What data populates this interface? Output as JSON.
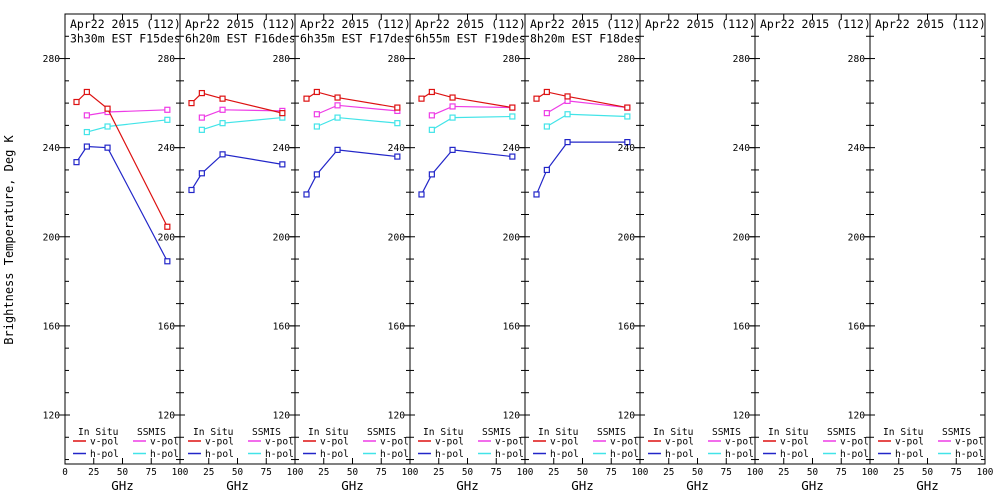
{
  "figure": {
    "background": "#ffffff",
    "axis_color": "#000000",
    "ylabel": "Brightness Temperature, Deg K",
    "xlabel": "GHz",
    "legend": {
      "col1_header": "In Situ",
      "col2_header": "SSMIS",
      "vpol_label": "v-pol",
      "hpol_label": "h-pol"
    }
  },
  "colors": {
    "insitu_v": "#dd1111",
    "insitu_h": "#2226c8",
    "ssmis_v": "#ee3ce6",
    "ssmis_h": "#42e4e8"
  },
  "chart_data": {
    "type": "line",
    "xlabel": "GHz",
    "ylabel": "Brightness Temperature, Deg K",
    "xlim": [
      0,
      100
    ],
    "ylim": [
      98,
      300
    ],
    "xticks": [
      0,
      25,
      50,
      75,
      100
    ],
    "yticks": [
      120,
      160,
      200,
      240,
      280
    ],
    "x_minor_step": 0,
    "y_minor_step": 10,
    "legend_entries": [
      {
        "group": "In Situ",
        "label": "v-pol",
        "series": "insitu_v"
      },
      {
        "group": "In Situ",
        "label": "h-pol",
        "series": "insitu_h"
      },
      {
        "group": "SSMIS",
        "label": "v-pol",
        "series": "ssmis_v"
      },
      {
        "group": "SSMIS",
        "label": "h-pol",
        "series": "ssmis_h"
      }
    ],
    "panels": [
      {
        "title1": "Apr22 2015 (112)",
        "title2": "3h30m EST F15desc",
        "series": [
          {
            "name": "ssmis_h",
            "x": [
              19,
              37,
              89
            ],
            "y": [
              247,
              249.5,
              252.5
            ]
          },
          {
            "name": "ssmis_v",
            "x": [
              19,
              37,
              89
            ],
            "y": [
              254.5,
              256,
              257
            ]
          },
          {
            "name": "insitu_h",
            "x": [
              10,
              19,
              37,
              89
            ],
            "y": [
              233.5,
              240.5,
              240,
              189
            ]
          },
          {
            "name": "insitu_v",
            "x": [
              10,
              19,
              37,
              89
            ],
            "y": [
              260.5,
              265,
              257.5,
              204.5
            ]
          }
        ]
      },
      {
        "title1": "Apr22 2015 (112)",
        "title2": "6h20m EST F16desc",
        "series": [
          {
            "name": "ssmis_h",
            "x": [
              19,
              37,
              89
            ],
            "y": [
              248,
              251,
              253.5
            ]
          },
          {
            "name": "ssmis_v",
            "x": [
              19,
              37,
              89
            ],
            "y": [
              253.5,
              257,
              256.5
            ]
          },
          {
            "name": "insitu_h",
            "x": [
              10,
              19,
              37,
              89
            ],
            "y": [
              221,
              228.5,
              237,
              232.5
            ]
          },
          {
            "name": "insitu_v",
            "x": [
              10,
              19,
              37,
              89
            ],
            "y": [
              260,
              264.5,
              262,
              255.5
            ]
          }
        ]
      },
      {
        "title1": "Apr22 2015 (112)",
        "title2": "6h35m EST F17desc",
        "series": [
          {
            "name": "ssmis_h",
            "x": [
              19,
              37,
              89
            ],
            "y": [
              249.5,
              253.5,
              251
            ]
          },
          {
            "name": "ssmis_v",
            "x": [
              19,
              37,
              89
            ],
            "y": [
              255,
              259,
              256.5
            ]
          },
          {
            "name": "insitu_h",
            "x": [
              10,
              19,
              37,
              89
            ],
            "y": [
              219,
              228,
              239,
              236
            ]
          },
          {
            "name": "insitu_v",
            "x": [
              10,
              19,
              37,
              89
            ],
            "y": [
              262,
              265,
              262.5,
              258
            ]
          }
        ]
      },
      {
        "title1": "Apr22 2015 (112)",
        "title2": "6h55m EST F19desc",
        "series": [
          {
            "name": "ssmis_h",
            "x": [
              19,
              37,
              89
            ],
            "y": [
              248,
              253.5,
              254
            ]
          },
          {
            "name": "ssmis_v",
            "x": [
              19,
              37,
              89
            ],
            "y": [
              254.5,
              258.5,
              258
            ]
          },
          {
            "name": "insitu_h",
            "x": [
              10,
              19,
              37,
              89
            ],
            "y": [
              219,
              228,
              239,
              236
            ]
          },
          {
            "name": "insitu_v",
            "x": [
              10,
              19,
              37,
              89
            ],
            "y": [
              262,
              265,
              262.5,
              258
            ]
          }
        ]
      },
      {
        "title1": "Apr22 2015 (112)",
        "title2": "8h20m EST F18desc",
        "series": [
          {
            "name": "ssmis_h",
            "x": [
              19,
              37,
              89
            ],
            "y": [
              249.5,
              255,
              254
            ]
          },
          {
            "name": "ssmis_v",
            "x": [
              19,
              37,
              89
            ],
            "y": [
              255.5,
              261,
              258
            ]
          },
          {
            "name": "insitu_h",
            "x": [
              10,
              19,
              37,
              89
            ],
            "y": [
              219,
              230,
              242.5,
              242.5
            ]
          },
          {
            "name": "insitu_v",
            "x": [
              10,
              19,
              37,
              89
            ],
            "y": [
              262,
              265,
              263,
              258
            ]
          }
        ]
      },
      {
        "title1": "Apr22 2015 (112)",
        "title2": "",
        "series": []
      },
      {
        "title1": "Apr22 2015 (112)",
        "title2": "",
        "series": []
      },
      {
        "title1": "Apr22 2015 (112)",
        "title2": "",
        "series": []
      }
    ]
  }
}
